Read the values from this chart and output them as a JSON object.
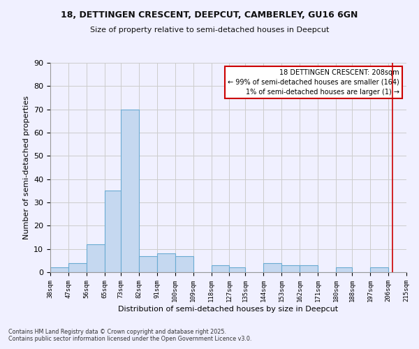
{
  "title1": "18, DETTINGEN CRESCENT, DEEPCUT, CAMBERLEY, GU16 6GN",
  "title2": "Size of property relative to semi-detached houses in Deepcut",
  "xlabel": "Distribution of semi-detached houses by size in Deepcut",
  "ylabel": "Number of semi-detached properties",
  "bin_edges": [
    38,
    47,
    56,
    65,
    73,
    82,
    91,
    100,
    109,
    118,
    127,
    135,
    144,
    153,
    162,
    171,
    180,
    188,
    197,
    206,
    215
  ],
  "bar_heights": [
    2,
    4,
    12,
    35,
    70,
    7,
    8,
    7,
    0,
    3,
    2,
    0,
    4,
    3,
    3,
    0,
    2,
    0,
    2,
    0
  ],
  "bar_color": "#c5d8f0",
  "bar_edge_color": "#6aabd2",
  "grid_color": "#cccccc",
  "vline_x": 208,
  "vline_color": "#cc0000",
  "ylim": [
    0,
    90
  ],
  "yticks": [
    0,
    10,
    20,
    30,
    40,
    50,
    60,
    70,
    80,
    90
  ],
  "tick_labels": [
    "38sqm",
    "47sqm",
    "56sqm",
    "65sqm",
    "73sqm",
    "82sqm",
    "91sqm",
    "100sqm",
    "109sqm",
    "118sqm",
    "127sqm",
    "135sqm",
    "144sqm",
    "153sqm",
    "162sqm",
    "171sqm",
    "180sqm",
    "188sqm",
    "197sqm",
    "206sqm",
    "215sqm"
  ],
  "legend_title": "18 DETTINGEN CRESCENT: 208sqm",
  "legend_line1": "← 99% of semi-detached houses are smaller (164)",
  "legend_line2": "1% of semi-detached houses are larger (1) →",
  "legend_box_color": "#cc0000",
  "footnote1": "Contains HM Land Registry data © Crown copyright and database right 2025.",
  "footnote2": "Contains public sector information licensed under the Open Government Licence v3.0.",
  "bg_color": "#f0f0ff"
}
